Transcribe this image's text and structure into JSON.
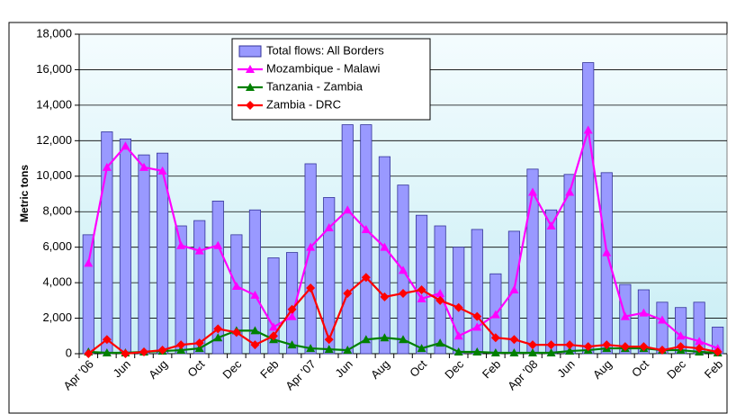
{
  "chart_data": {
    "type": "bar-line",
    "y_label": "Metric tons",
    "categories": [
      "Apr '06",
      null,
      "Jun",
      null,
      "Aug",
      null,
      "Oct",
      null,
      "Dec",
      null,
      "Feb",
      null,
      "Apr '07",
      null,
      "Jun",
      null,
      "Aug",
      null,
      "Oct",
      null,
      "Dec",
      null,
      "Feb",
      null,
      "Apr '08",
      null,
      "Jun",
      null,
      "Aug",
      null,
      "Oct",
      null,
      "Dec",
      null,
      "Feb"
    ],
    "ylim": [
      0,
      18000
    ],
    "yticks": [
      0,
      {
        "value": 2000,
        "label": "2,000"
      },
      {
        "value": 4000,
        "label": "4,000"
      },
      {
        "value": 6000,
        "label": "6,000"
      },
      {
        "value": 8000,
        "label": "8,000"
      },
      {
        "value": 10000,
        "label": "10,000"
      },
      {
        "value": 12000,
        "label": "12,000"
      },
      {
        "value": 14000,
        "label": "14,000"
      },
      {
        "value": 16000,
        "label": "16,000"
      },
      {
        "value": 18000,
        "label": "18,000"
      }
    ],
    "grid": true,
    "legend": "upper-center",
    "series": [
      {
        "name": "Total flows: All Borders",
        "kind": "bar",
        "color": "#9999ff",
        "values": [
          6700,
          12500,
          12100,
          11200,
          11300,
          7200,
          7500,
          8600,
          6700,
          8100,
          5400,
          5700,
          10700,
          8800,
          12900,
          12900,
          11100,
          9500,
          7800,
          7200,
          6000,
          7000,
          4500,
          6900,
          10400,
          8100,
          10100,
          16400,
          10200,
          3900,
          3600,
          2900,
          2600,
          2900,
          1500
        ]
      },
      {
        "name": "Mozambique - Malawi",
        "kind": "line",
        "marker": "triangle",
        "color": "#ff00ff",
        "values": [
          5100,
          10500,
          11700,
          10500,
          10300,
          6100,
          5800,
          6100,
          3800,
          3300,
          1500,
          2100,
          6000,
          7100,
          8100,
          7000,
          6000,
          4700,
          3100,
          3400,
          1000,
          1500,
          2200,
          3600,
          9100,
          7200,
          9100,
          12600,
          5700,
          2100,
          2300,
          1900,
          1000,
          700,
          300
        ]
      },
      {
        "name": "Tanzania - Zambia",
        "kind": "line",
        "marker": "triangle",
        "color": "#008000",
        "values": [
          100,
          50,
          50,
          100,
          150,
          200,
          300,
          900,
          1300,
          1300,
          800,
          500,
          300,
          250,
          200,
          800,
          900,
          800,
          300,
          600,
          100,
          100,
          50,
          50,
          50,
          50,
          150,
          200,
          300,
          300,
          300,
          200,
          200,
          100,
          50
        ]
      },
      {
        "name": "Zambia - DRC",
        "kind": "line",
        "marker": "diamond",
        "color": "#ff0000",
        "values": [
          0,
          800,
          0,
          100,
          200,
          500,
          600,
          1400,
          1200,
          500,
          1000,
          2500,
          3700,
          800,
          3400,
          4300,
          3200,
          3400,
          3600,
          3000,
          2600,
          2100,
          900,
          800,
          500,
          500,
          500,
          400,
          500,
          400,
          400,
          200,
          400,
          300,
          100
        ]
      }
    ]
  }
}
